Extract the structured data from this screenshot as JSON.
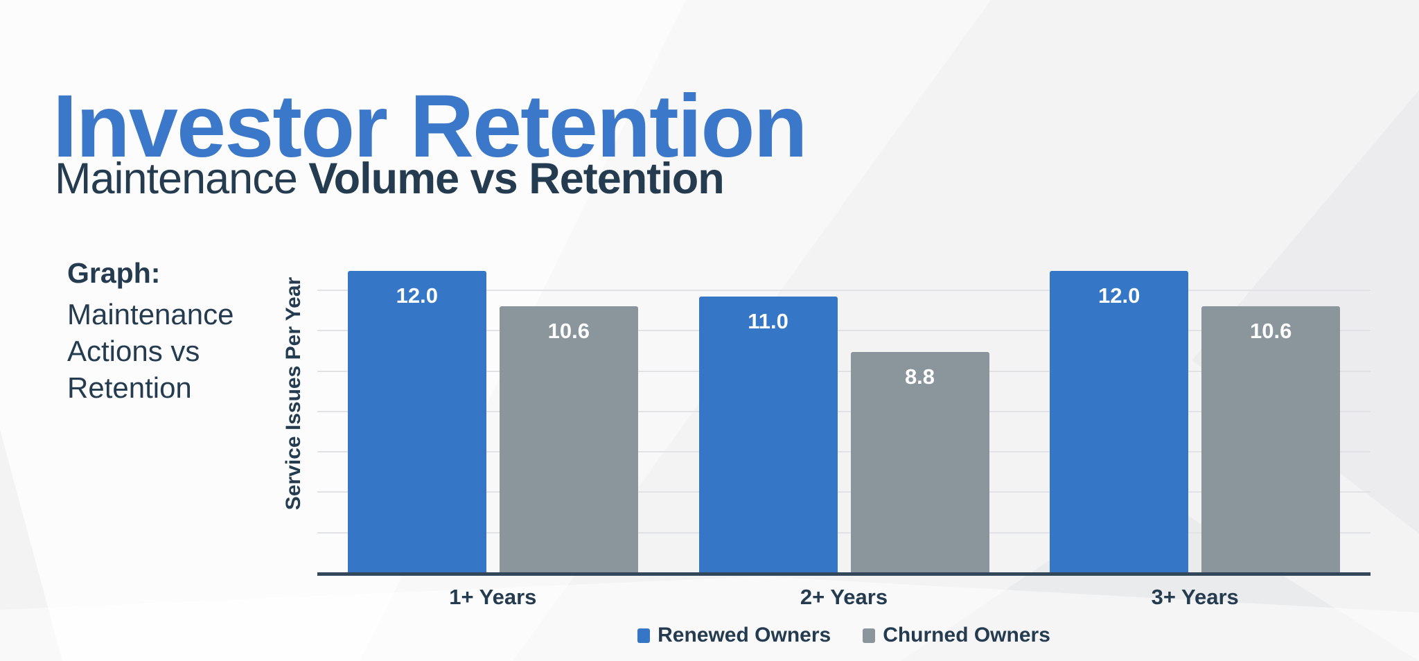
{
  "colors": {
    "background": "#f3f3f4",
    "title_blue": "#3b78c9",
    "text_navy": "#243b50",
    "bar_blue": "#3577c6",
    "bar_gray": "#8b969c",
    "axis_line": "#33475a",
    "gridline": "#e0e2e5",
    "bar_value_text": "#ffffff"
  },
  "header": {
    "title": "Investor Retention",
    "subtitle_regular": "Maintenance",
    "subtitle_bold": "Volume vs Retention"
  },
  "graph_caption": {
    "heading": "Graph:",
    "lines": [
      "Maintenance",
      "Actions vs",
      "Retention"
    ]
  },
  "chart_data": {
    "type": "bar",
    "title": "Maintenance Volume vs Retention",
    "categories": [
      "1+ Years",
      "2+ Years",
      "3+ Years"
    ],
    "series": [
      {
        "name": "Renewed Owners",
        "color": "#3577c6",
        "values": [
          12.0,
          11.0,
          12.0
        ],
        "value_labels": [
          "12.0",
          "11.0",
          "12.0"
        ]
      },
      {
        "name": "Churned Owners",
        "color": "#8b969c",
        "values": [
          10.6,
          8.8,
          10.6
        ],
        "value_labels": [
          "10.6",
          "8.8",
          "10.6"
        ]
      }
    ],
    "xlabel": "",
    "ylabel": "Service Issues Per Year",
    "ylim": [
      0,
      12.5
    ],
    "grid": true,
    "gridline_count": 7,
    "legend_position": "bottom",
    "value_label_position": "inside-top"
  }
}
